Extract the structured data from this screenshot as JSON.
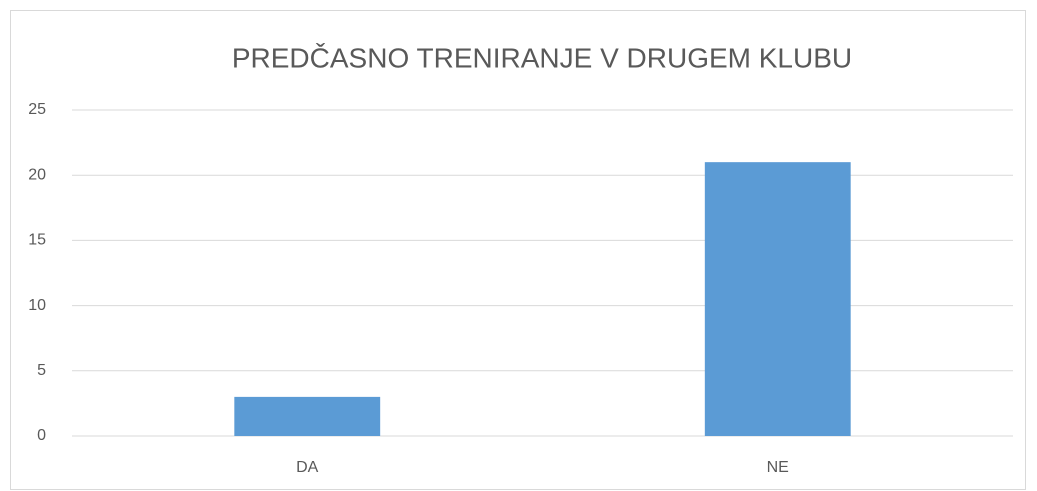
{
  "chart_data": {
    "type": "bar",
    "title": "PREDČASNO TRENIRANJE V DRUGEM KLUBU",
    "categories": [
      "DA",
      "NE"
    ],
    "values": [
      3,
      21
    ],
    "color": "#5b9bd5",
    "ylim": [
      0,
      25
    ],
    "yticks": [
      0,
      5,
      10,
      15,
      20,
      25
    ],
    "grid": true
  }
}
